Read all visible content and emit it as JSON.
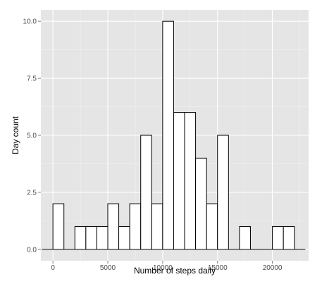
{
  "chart_data": {
    "type": "bar",
    "title": "",
    "xlabel": "Number of steps daily",
    "ylabel": "Day count",
    "xlim": [
      -1100,
      23300
    ],
    "ylim": [
      -0.5,
      10.5
    ],
    "x_ticks": [
      0,
      5000,
      10000,
      15000,
      20000
    ],
    "x_tick_labels": [
      "0",
      "5000",
      "10000",
      "15000",
      "20000"
    ],
    "y_ticks": [
      0,
      2.5,
      5,
      7.5,
      10
    ],
    "y_tick_labels": [
      "0.0",
      "2.5",
      "5.0",
      "7.5",
      "10.0"
    ],
    "bin_width": 1000,
    "bins": [
      {
        "x": -500,
        "count": 0
      },
      {
        "x": 500,
        "count": 2
      },
      {
        "x": 1500,
        "count": 0
      },
      {
        "x": 2500,
        "count": 1
      },
      {
        "x": 3500,
        "count": 1
      },
      {
        "x": 4500,
        "count": 1
      },
      {
        "x": 5500,
        "count": 2
      },
      {
        "x": 6500,
        "count": 1
      },
      {
        "x": 7500,
        "count": 2
      },
      {
        "x": 8500,
        "count": 5
      },
      {
        "x": 9500,
        "count": 2
      },
      {
        "x": 10500,
        "count": 10
      },
      {
        "x": 11500,
        "count": 6
      },
      {
        "x": 12500,
        "count": 6
      },
      {
        "x": 13500,
        "count": 4
      },
      {
        "x": 14500,
        "count": 2
      },
      {
        "x": 15500,
        "count": 5
      },
      {
        "x": 16500,
        "count": 0
      },
      {
        "x": 17500,
        "count": 1
      },
      {
        "x": 18500,
        "count": 0
      },
      {
        "x": 19500,
        "count": 0
      },
      {
        "x": 20500,
        "count": 1
      },
      {
        "x": 21500,
        "count": 1
      },
      {
        "x": 22500,
        "count": 0
      }
    ],
    "grid": true,
    "colors": {
      "panel": "#e5e5e5",
      "grid_major": "#ffffff",
      "grid_minor": "#f2f2f2",
      "bar_fill": "#ffffff",
      "bar_stroke": "#000000"
    }
  }
}
